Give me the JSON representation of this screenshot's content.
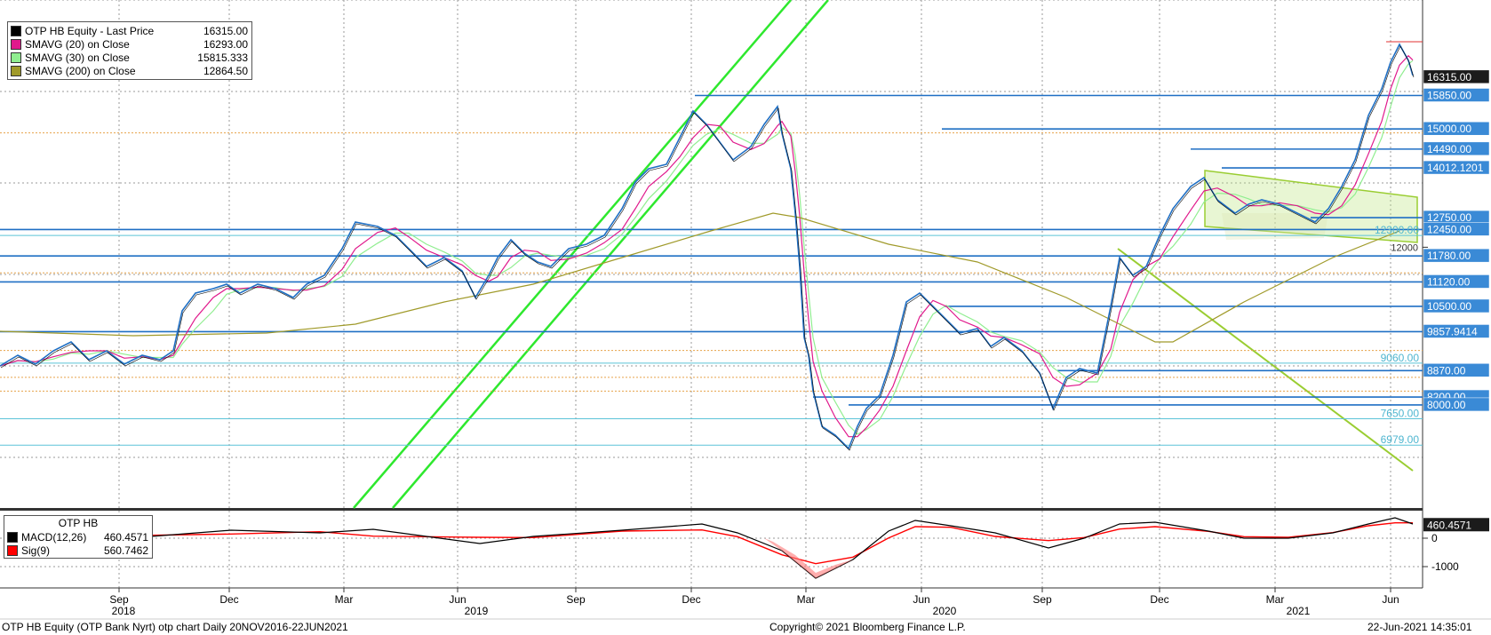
{
  "legend_main": [
    {
      "name": "OTP HB Equity - Last Price",
      "value": "16315.00",
      "color": "#000000"
    },
    {
      "name": "SMAVG (20)  on Close",
      "value": "16293.00",
      "color": "#e0198c"
    },
    {
      "name": "SMAVG (30)  on Close",
      "value": "15815.333",
      "color": "#90ee90"
    },
    {
      "name": "SMAVG (200)  on Close",
      "value": "12864.50",
      "color": "#a09a2a"
    }
  ],
  "legend_macd": {
    "title": "OTP HB",
    "items": [
      {
        "name": "MACD(12,26)",
        "value": "460.4571",
        "color": "#000000"
      },
      {
        "name": "Sig(9)",
        "value": "560.7462",
        "color": "#ff0000"
      }
    ]
  },
  "footer": {
    "left": "OTP HB Equity (OTP Bank Nyrt) otp chart  Daily 20NOV2016-22JUN2021",
    "center": "Copyright© 2021 Bloomberg Finance L.P.",
    "right": "22-Jun-2021 14:35:01"
  },
  "chart_data": {
    "type": "line",
    "x_months": [
      "Sep",
      "Dec",
      "Mar",
      "Jun",
      "Sep",
      "Dec",
      "Mar",
      "Jun",
      "Sep",
      "Dec",
      "Mar",
      "Jun"
    ],
    "x_years": [
      "2018",
      "2019",
      "2020",
      "2021"
    ],
    "y_ticks": [
      "12000"
    ],
    "macd_y_ticks": [
      "0",
      "-1000"
    ],
    "price_badges": [
      {
        "label": "16315.00",
        "value": 16315,
        "style": "dark"
      },
      {
        "label": "15850.00",
        "value": 15850,
        "style": "blue"
      },
      {
        "label": "15000.00",
        "value": 15000,
        "style": "blue"
      },
      {
        "label": "14490.00",
        "value": 14490,
        "style": "blue"
      },
      {
        "label": "14012.1201",
        "value": 14012,
        "style": "blue"
      },
      {
        "label": "12750.00",
        "value": 12750,
        "style": "blue"
      },
      {
        "label": "12450.00",
        "value": 12450,
        "style": "blue"
      },
      {
        "label": "11780.00",
        "value": 11780,
        "style": "blue"
      },
      {
        "label": "11120.00",
        "value": 11120,
        "style": "blue"
      },
      {
        "label": "10500.00",
        "value": 10500,
        "style": "blue"
      },
      {
        "label": "9857.9414",
        "value": 9858,
        "style": "blue"
      },
      {
        "label": "8870.00",
        "value": 8870,
        "style": "blue"
      },
      {
        "label": "8200.00",
        "value": 8200,
        "style": "blue"
      },
      {
        "label": "8000.00",
        "value": 8000,
        "style": "blue"
      }
    ],
    "price_labels": [
      {
        "label": "12300.00",
        "value": 12300
      },
      {
        "label": "9060.00",
        "value": 9060
      },
      {
        "label": "7650.00",
        "value": 7650
      },
      {
        "label": "6979.00",
        "value": 6979
      }
    ],
    "macd_badge": "460.4571",
    "last_price": 16315,
    "smavg20_last": 16293,
    "smavg30_last": 15815.333,
    "smavg200_last": 12864.5,
    "macd_last": 460.4571,
    "sig_last": 560.7462
  }
}
